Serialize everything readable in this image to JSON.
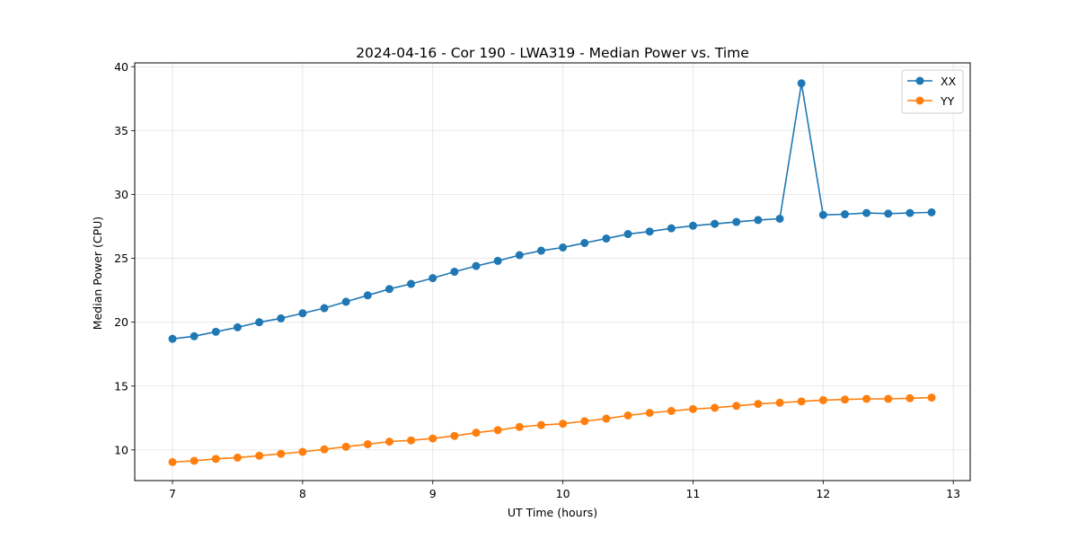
{
  "chart_data": {
    "type": "line",
    "title": "2024-04-16 - Cor 190 - LWA319 - Median Power vs. Time",
    "xlabel": "UT Time (hours)",
    "ylabel": "Median Power (CPU)",
    "xlim": [
      6.71,
      13.13
    ],
    "ylim": [
      7.6,
      40.3
    ],
    "xticks": [
      7,
      8,
      9,
      10,
      11,
      12,
      13
    ],
    "yticks": [
      10,
      15,
      20,
      25,
      30,
      35,
      40
    ],
    "xtick_labels": [
      "7",
      "8",
      "9",
      "10",
      "11",
      "12",
      "13"
    ],
    "ytick_labels": [
      "10",
      "15",
      "20",
      "25",
      "30",
      "35",
      "40"
    ],
    "grid": true,
    "legend_position": "top-right",
    "x": [
      7.0,
      7.1667,
      7.3333,
      7.5,
      7.6667,
      7.8333,
      8.0,
      8.1667,
      8.3333,
      8.5,
      8.6667,
      8.8333,
      9.0,
      9.1667,
      9.3333,
      9.5,
      9.6667,
      9.8333,
      10.0,
      10.1667,
      10.3333,
      10.5,
      10.6667,
      10.8333,
      11.0,
      11.1667,
      11.3333,
      11.5,
      11.6667,
      11.8333,
      12.0,
      12.1667,
      12.3333,
      12.5,
      12.6667,
      12.8333
    ],
    "series": [
      {
        "name": "XX",
        "color": "#1f77b4",
        "values": [
          18.7,
          18.9,
          19.25,
          19.6,
          20.0,
          20.3,
          20.7,
          21.1,
          21.6,
          22.1,
          22.6,
          23.0,
          23.45,
          23.95,
          24.4,
          24.8,
          25.25,
          25.6,
          25.85,
          26.2,
          26.55,
          26.9,
          27.1,
          27.35,
          27.55,
          27.7,
          27.85,
          28.0,
          28.1,
          38.7,
          28.4,
          28.45,
          28.55,
          28.5,
          28.55,
          28.6
        ]
      },
      {
        "name": "YY",
        "color": "#ff7f0e",
        "values": [
          9.05,
          9.15,
          9.3,
          9.4,
          9.55,
          9.7,
          9.85,
          10.05,
          10.25,
          10.45,
          10.65,
          10.75,
          10.9,
          11.1,
          11.35,
          11.55,
          11.8,
          11.95,
          12.05,
          12.25,
          12.45,
          12.7,
          12.9,
          13.05,
          13.2,
          13.3,
          13.45,
          13.6,
          13.7,
          13.8,
          13.9,
          13.95,
          14.0,
          14.0,
          14.05,
          14.1
        ]
      }
    ]
  }
}
